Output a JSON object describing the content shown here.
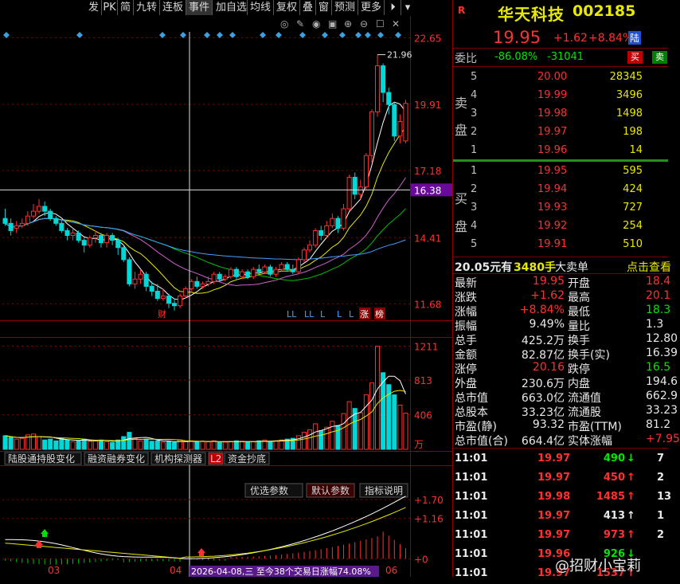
{
  "toolbar": {
    "items": [
      "发",
      "PK",
      "简",
      "九转",
      "连板",
      "事件",
      "加自选",
      "均线",
      "复权",
      "叠",
      "窗",
      "预测",
      "更多"
    ]
  },
  "axis": {
    "price_labels": [
      "22.65",
      "19.91",
      "17.18",
      "14.41",
      "11.68"
    ],
    "crosshair_price": "16.38",
    "high_marker": "21.96",
    "volume_labels": [
      "1211",
      "813",
      "406"
    ],
    "volume_unit": "万",
    "indicator_labels": [
      "+1.70",
      "+1.16",
      "+0"
    ],
    "date_labels": [
      "03",
      "04",
      "06"
    ],
    "date_tooltip": "2026-04-08,三 至今38个交易日涨幅74.08%"
  },
  "event_markers": {
    "cai": "财",
    "L_labels": [
      "LL",
      "LL",
      "L",
      "L",
      "L"
    ],
    "zhang": "涨",
    "bang": "榜"
  },
  "tabs_bottom": {
    "items": [
      "陆股通持股变化",
      "融资融券变化",
      "机构探测器",
      "L2",
      "资金抄底"
    ]
  },
  "indicator_tabs": {
    "items": [
      "优选参数",
      "默认参数",
      "指标说明"
    ]
  },
  "quote": {
    "r_label": "R",
    "name": "华天科技",
    "code": "002185",
    "price": "19.95",
    "change": "+1.62",
    "change_pct": "+8.84%",
    "market_badge": "陆",
    "weibi_label": "委比",
    "weibi_pct": "-86.08%",
    "weibi_diff": "-31041",
    "buy_btn": "买",
    "sell_btn": "卖"
  },
  "orderbook": {
    "sell_label": [
      "卖",
      "盘"
    ],
    "buy_label": [
      "买",
      "盘"
    ],
    "sells": [
      {
        "level": "5",
        "price": "20.00",
        "vol": "28345"
      },
      {
        "level": "4",
        "price": "19.99",
        "vol": "3496"
      },
      {
        "level": "3",
        "price": "19.98",
        "vol": "1498"
      },
      {
        "level": "2",
        "price": "19.97",
        "vol": "198"
      },
      {
        "level": "1",
        "price": "19.96",
        "vol": "14"
      }
    ],
    "buys": [
      {
        "level": "1",
        "price": "19.95",
        "vol": "595"
      },
      {
        "level": "2",
        "price": "19.94",
        "vol": "424"
      },
      {
        "level": "3",
        "price": "19.93",
        "vol": "727"
      },
      {
        "level": "4",
        "price": "19.92",
        "vol": "254"
      },
      {
        "level": "5",
        "price": "19.91",
        "vol": "510"
      }
    ]
  },
  "big_order": {
    "price": "20.05元有",
    "qty": "3480手",
    "label": "大卖单",
    "link": "点击查看"
  },
  "stats": [
    {
      "l1": "最新",
      "v1": "19.95",
      "l2": "开盘",
      "v2": "18.4"
    },
    {
      "l1": "涨跌",
      "v1": "+1.62",
      "l2": "最高",
      "v2": "20.1"
    },
    {
      "l1": "涨幅",
      "v1": "+8.84%",
      "l2": "最低",
      "v2": "18.3"
    },
    {
      "l1": "振幅",
      "v1": "9.49%",
      "l2": "量比",
      "v2": "1.3"
    },
    {
      "l1": "总手",
      "v1": "425.2万",
      "l2": "换手",
      "v2": "12.80"
    },
    {
      "l1": "金额",
      "v1": "82.87亿",
      "l2": "换手(实)",
      "v2": "16.39"
    },
    {
      "l1": "涨停",
      "v1": "20.16",
      "l2": "跌停",
      "v2": "16.5"
    },
    {
      "l1": "外盘",
      "v1": "230.6万",
      "l2": "内盘",
      "v2": "194.6"
    },
    {
      "l1": "总市值",
      "v1": "663.0亿",
      "l2": "流通值",
      "v2": "662.9"
    },
    {
      "l1": "总股本",
      "v1": "33.23亿",
      "l2": "流通股",
      "v2": "33.23"
    },
    {
      "l1": "市盈(静)",
      "v1": "93.32",
      "l2": "市盈(TTM)",
      "v2": "81.2"
    },
    {
      "l1": "总市值(合)",
      "v1": "664.4亿",
      "l2": "实体涨幅",
      "v2": "+7.95"
    }
  ],
  "ticks": [
    {
      "time": "11:01",
      "price": "19.97",
      "vol": "490",
      "dir": "down",
      "extra": "7"
    },
    {
      "time": "11:01",
      "price": "19.97",
      "vol": "450",
      "dir": "up",
      "extra": "2"
    },
    {
      "time": "11:01",
      "price": "19.98",
      "vol": "1485",
      "dir": "up",
      "extra": "13"
    },
    {
      "time": "11:01",
      "price": "19.97",
      "vol": "413",
      "dir": "up-white",
      "extra": "1"
    },
    {
      "time": "11:01",
      "price": "19.97",
      "vol": "973",
      "dir": "up",
      "extra": "2"
    },
    {
      "time": "11:01",
      "price": "19.96",
      "vol": "926",
      "dir": "down",
      "extra": ""
    },
    {
      "time": "11:01",
      "price": "19.97",
      "vol": "1537",
      "dir": "up",
      "extra": ""
    }
  ],
  "watermark": "@招财小宝莉",
  "colors": {
    "up": "#ff3030",
    "down": "#00d8d8",
    "ma5": "#ffffff",
    "ma10": "#e8e800",
    "ma20": "#d060d0",
    "ma30": "#00c000",
    "ma60": "#40a0ff"
  },
  "chart_data": {
    "type": "candlestick",
    "ylim": [
      11.0,
      22.9
    ],
    "ohlc": [
      [
        15.2,
        15.0,
        15.6,
        14.9
      ],
      [
        15.0,
        14.7,
        15.2,
        14.5
      ],
      [
        14.8,
        14.9,
        15.1,
        14.6
      ],
      [
        14.9,
        15.0,
        15.2,
        14.8
      ],
      [
        15.0,
        15.3,
        15.5,
        14.9
      ],
      [
        15.3,
        15.5,
        15.8,
        15.2
      ],
      [
        15.5,
        15.7,
        16.0,
        15.4
      ],
      [
        15.7,
        15.5,
        15.9,
        15.3
      ],
      [
        15.5,
        15.2,
        15.6,
        15.1
      ],
      [
        15.2,
        15.0,
        15.3,
        14.9
      ],
      [
        15.0,
        14.7,
        15.1,
        14.6
      ],
      [
        14.7,
        14.5,
        14.8,
        14.3
      ],
      [
        14.5,
        14.6,
        14.8,
        14.3
      ],
      [
        14.6,
        14.3,
        14.7,
        14.2
      ],
      [
        14.3,
        14.1,
        14.4,
        13.8
      ],
      [
        14.1,
        14.4,
        14.5,
        14.0
      ],
      [
        14.4,
        14.5,
        14.7,
        14.2
      ],
      [
        14.5,
        14.2,
        14.6,
        14.0
      ],
      [
        14.2,
        14.5,
        14.6,
        14.0
      ],
      [
        14.5,
        14.3,
        14.6,
        14.1
      ],
      [
        14.3,
        14.0,
        14.4,
        13.7
      ],
      [
        14.0,
        13.5,
        14.1,
        13.4
      ],
      [
        13.5,
        12.5,
        13.6,
        12.4
      ],
      [
        12.5,
        12.7,
        13.0,
        12.3
      ],
      [
        12.7,
        12.9,
        13.1,
        12.5
      ],
      [
        12.9,
        12.4,
        13.0,
        12.2
      ],
      [
        12.4,
        12.2,
        12.6,
        12.0
      ],
      [
        12.2,
        11.9,
        12.5,
        11.8
      ],
      [
        11.9,
        12.0,
        12.3,
        11.8
      ],
      [
        12.0,
        11.7,
        12.1,
        11.5
      ],
      [
        11.7,
        11.6,
        11.9,
        11.4
      ],
      [
        11.6,
        12.0,
        12.1,
        11.5
      ],
      [
        12.0,
        12.3,
        12.4,
        11.9
      ],
      [
        12.3,
        12.6,
        12.7,
        12.2
      ],
      [
        12.6,
        12.4,
        12.8,
        12.3
      ],
      [
        12.4,
        12.5,
        12.6,
        12.3
      ],
      [
        12.5,
        12.6,
        12.8,
        12.4
      ],
      [
        12.6,
        12.9,
        13.0,
        12.5
      ],
      [
        12.9,
        12.7,
        13.0,
        12.6
      ],
      [
        12.7,
        12.8,
        12.9,
        12.6
      ],
      [
        12.8,
        13.1,
        13.2,
        12.7
      ],
      [
        13.1,
        12.8,
        13.2,
        12.7
      ],
      [
        12.8,
        13.0,
        13.1,
        12.7
      ],
      [
        13.0,
        12.8,
        13.1,
        12.7
      ],
      [
        12.8,
        13.1,
        13.2,
        12.7
      ],
      [
        13.1,
        13.0,
        13.3,
        12.9
      ],
      [
        13.0,
        13.2,
        13.3,
        12.9
      ],
      [
        13.2,
        12.9,
        13.3,
        12.8
      ],
      [
        12.9,
        13.1,
        13.2,
        12.8
      ],
      [
        13.1,
        13.3,
        13.4,
        13.0
      ],
      [
        13.3,
        13.1,
        13.4,
        13.0
      ],
      [
        13.1,
        13.0,
        13.3,
        12.9
      ],
      [
        13.0,
        13.5,
        13.6,
        12.9
      ],
      [
        13.5,
        13.9,
        14.0,
        13.4
      ],
      [
        13.9,
        14.1,
        14.3,
        13.8
      ],
      [
        14.1,
        14.7,
        14.8,
        14.0
      ],
      [
        14.7,
        14.5,
        14.9,
        14.3
      ],
      [
        14.5,
        14.9,
        15.1,
        14.4
      ],
      [
        14.9,
        15.2,
        15.4,
        14.8
      ],
      [
        15.2,
        14.8,
        15.3,
        14.6
      ],
      [
        14.8,
        15.6,
        15.8,
        14.7
      ],
      [
        15.6,
        16.9,
        17.0,
        15.5
      ],
      [
        16.9,
        16.2,
        17.1,
        16.0
      ],
      [
        16.2,
        16.5,
        16.8,
        16.0
      ],
      [
        16.5,
        17.8,
        17.9,
        16.4
      ],
      [
        17.8,
        19.6,
        19.7,
        17.5
      ],
      [
        19.6,
        21.5,
        21.96,
        19.4
      ],
      [
        21.5,
        20.4,
        21.6,
        20.0
      ],
      [
        20.4,
        19.9,
        20.6,
        19.5
      ],
      [
        19.9,
        18.6,
        20.0,
        18.4
      ],
      [
        18.6,
        19.2,
        19.5,
        18.3
      ],
      [
        18.4,
        19.95,
        20.1,
        18.3
      ]
    ],
    "volume": [
      160,
      140,
      120,
      130,
      170,
      180,
      150,
      110,
      120,
      100,
      130,
      110,
      90,
      100,
      120,
      95,
      100,
      110,
      90,
      80,
      110,
      150,
      200,
      130,
      100,
      120,
      95,
      100,
      85,
      90,
      80,
      110,
      90,
      100,
      85,
      95,
      90,
      100,
      80,
      85,
      90,
      100,
      95,
      85,
      90,
      100,
      110,
      95,
      100,
      110,
      120,
      130,
      160,
      200,
      230,
      300,
      220,
      260,
      330,
      280,
      420,
      560,
      480,
      430,
      640,
      780,
      1211,
      900,
      760,
      640,
      520,
      425
    ]
  }
}
